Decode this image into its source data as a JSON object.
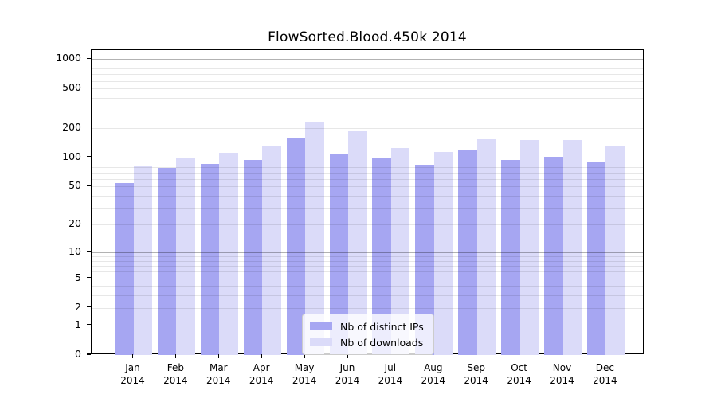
{
  "chart_data": {
    "type": "bar",
    "title": "FlowSorted.Blood.450k 2014",
    "categories": [
      "Jan 2014",
      "Feb 2014",
      "Mar 2014",
      "Apr 2014",
      "May 2014",
      "Jun 2014",
      "Jul 2014",
      "Aug 2014",
      "Sep 2014",
      "Oct 2014",
      "Nov 2014",
      "Dec 2014"
    ],
    "series": [
      {
        "name": "Nb of distinct IPs",
        "color": "#a6a6f2",
        "values": [
          54,
          78,
          85,
          93,
          159,
          110,
          97,
          84,
          118,
          93,
          101,
          90
        ]
      },
      {
        "name": "Nb of downloads",
        "color": "#dbdbf9",
        "values": [
          81,
          100,
          111,
          129,
          232,
          187,
          125,
          113,
          156,
          150,
          151,
          130
        ]
      }
    ],
    "y_scale": "log1p",
    "y_ticks": [
      0,
      1,
      2,
      5,
      10,
      20,
      50,
      100,
      200,
      500,
      1000
    ],
    "ylim": [
      0,
      1230
    ],
    "grid": true,
    "legend_position": "lower center inside"
  },
  "colors": {
    "axis": "#000000",
    "major_gridline": "#b3b3b3",
    "minor_gridline": "#e8e8e8",
    "legend_border": "#cccccc"
  }
}
